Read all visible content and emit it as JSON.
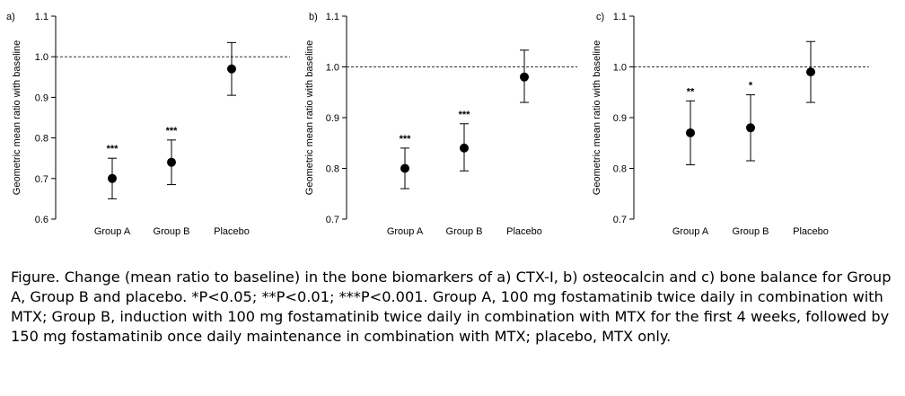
{
  "chart_data": [
    {
      "type": "scatter",
      "panel_label": "a)",
      "ylabel": "Geometric mean ratio with baseline",
      "ylim": [
        0.6,
        1.1
      ],
      "yticks": [
        "0.6",
        "0.7",
        "0.8",
        "0.9",
        "1.0",
        "1.1"
      ],
      "categories": [
        "Group A",
        "Group B",
        "Placebo"
      ],
      "values": [
        0.7,
        0.74,
        0.97
      ],
      "lower": [
        0.65,
        0.685,
        0.905
      ],
      "upper": [
        0.75,
        0.795,
        1.035
      ],
      "significance": [
        "***",
        "***",
        ""
      ],
      "reference_line": 1.0
    },
    {
      "type": "scatter",
      "panel_label": "b)",
      "ylabel": "Geometric mean ratio with baseline",
      "ylim": [
        0.7,
        1.1
      ],
      "yticks": [
        "0.7",
        "0.8",
        "0.9",
        "1.0",
        "1.1"
      ],
      "categories": [
        "Group A",
        "Group B",
        "Placebo"
      ],
      "values": [
        0.8,
        0.84,
        0.98
      ],
      "lower": [
        0.76,
        0.795,
        0.93
      ],
      "upper": [
        0.84,
        0.888,
        1.033
      ],
      "significance": [
        "***",
        "***",
        ""
      ],
      "reference_line": 1.0
    },
    {
      "type": "scatter",
      "panel_label": "c)",
      "ylabel": "Geometric mean ratio with baseline",
      "ylim": [
        0.7,
        1.1
      ],
      "yticks": [
        "0.7",
        "0.8",
        "0.9",
        "1.0",
        "1.1"
      ],
      "categories": [
        "Group A",
        "Group B",
        "Placebo"
      ],
      "values": [
        0.87,
        0.88,
        0.99
      ],
      "lower": [
        0.807,
        0.815,
        0.93
      ],
      "upper": [
        0.933,
        0.945,
        1.05
      ],
      "significance": [
        "**",
        "*",
        ""
      ],
      "reference_line": 1.0
    }
  ],
  "caption": "Figure. Change (mean ratio to baseline) in the bone biomarkers of a) CTX-I, b) osteocalcin and c) bone balance for Group A, Group B and placebo. *P<0.05; **P<0.01; ***P<0.001. Group A, 100 mg fostamatinib twice daily in combination with MTX; Group B, induction with 100 mg fostamatinib twice daily in combination with MTX for the first 4 weeks, followed by 150 mg fostamatinib once daily maintenance in combination with MTX; placebo, MTX only."
}
